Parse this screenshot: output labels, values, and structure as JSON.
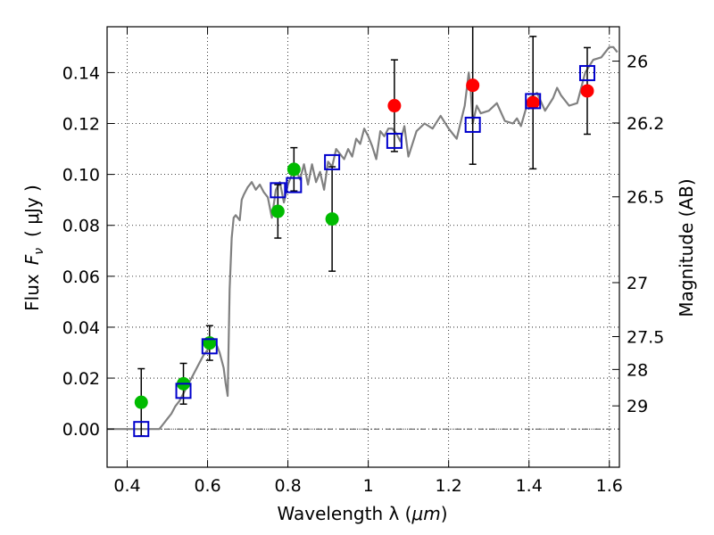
{
  "chart_data": {
    "type": "scatter",
    "xlabel": "Wavelength  λ (μm)",
    "ylabel": "Flux  F_ν  ( μJy )",
    "ylabel_parts": {
      "prefix": "Flux",
      "symbol": "F",
      "subscript": "ν",
      "unit": "( μJy )"
    },
    "xlabel_parts": {
      "prefix": "Wavelength  λ (",
      "unit": "μm",
      "suffix": ")"
    },
    "y2label": "Magnitude (AB)",
    "xlim": [
      0.35,
      1.625
    ],
    "ylim": [
      -0.015,
      0.158
    ],
    "grid": true,
    "x_ticks": [
      0.4,
      0.6,
      0.8,
      1.0,
      1.2,
      1.4,
      1.6
    ],
    "x_tick_labels": [
      "0.4",
      "0.6",
      "0.8",
      "1",
      "1.2",
      "1.4",
      "1.6"
    ],
    "y_ticks": [
      0.0,
      0.02,
      0.04,
      0.06,
      0.08,
      0.1,
      0.12,
      0.14
    ],
    "y_tick_labels": [
      "0.00",
      "0.02",
      "0.04",
      "0.06",
      "0.08",
      "0.10",
      "0.12",
      "0.14"
    ],
    "y2_ticks": [
      {
        "label": "26",
        "flux": 0.1445
      },
      {
        "label": "26.2",
        "flux": 0.1202
      },
      {
        "label": "26.5",
        "flux": 0.0912
      },
      {
        "label": "27",
        "flux": 0.0575
      },
      {
        "label": "27.5",
        "flux": 0.0363
      },
      {
        "label": "28",
        "flux": 0.0234
      },
      {
        "label": "29",
        "flux": 0.0091
      }
    ],
    "colors": {
      "green": "#00bb00",
      "red": "#ff0000",
      "squares": "#0000cc",
      "model": "#808080",
      "errorbar": "#000000"
    },
    "series": [
      {
        "kind": "model_spectrum",
        "x": [
          0.35,
          0.48,
          0.49,
          0.5,
          0.51,
          0.52,
          0.53,
          0.54,
          0.55,
          0.56,
          0.57,
          0.58,
          0.59,
          0.6,
          0.61,
          0.62,
          0.63,
          0.64,
          0.645,
          0.65,
          0.655,
          0.66,
          0.665,
          0.67,
          0.68,
          0.685,
          0.69,
          0.7,
          0.71,
          0.72,
          0.73,
          0.74,
          0.75,
          0.76,
          0.77,
          0.78,
          0.79,
          0.8,
          0.81,
          0.82,
          0.83,
          0.84,
          0.85,
          0.86,
          0.87,
          0.88,
          0.89,
          0.9,
          0.91,
          0.92,
          0.93,
          0.94,
          0.95,
          0.96,
          0.97,
          0.98,
          0.99,
          1.0,
          1.01,
          1.02,
          1.03,
          1.04,
          1.05,
          1.06,
          1.07,
          1.08,
          1.09,
          1.1,
          1.12,
          1.14,
          1.16,
          1.18,
          1.2,
          1.22,
          1.24,
          1.25,
          1.255,
          1.26,
          1.27,
          1.28,
          1.3,
          1.32,
          1.34,
          1.36,
          1.37,
          1.38,
          1.4,
          1.42,
          1.44,
          1.46,
          1.47,
          1.48,
          1.5,
          1.52,
          1.54,
          1.56,
          1.58,
          1.6,
          1.61,
          1.62
        ],
        "y": [
          0.0,
          0.0,
          0.002,
          0.004,
          0.006,
          0.009,
          0.011,
          0.014,
          0.017,
          0.02,
          0.023,
          0.026,
          0.029,
          0.031,
          0.034,
          0.034,
          0.03,
          0.024,
          0.018,
          0.013,
          0.055,
          0.075,
          0.083,
          0.084,
          0.082,
          0.09,
          0.092,
          0.095,
          0.097,
          0.094,
          0.096,
          0.093,
          0.091,
          0.083,
          0.094,
          0.097,
          0.089,
          0.096,
          0.1,
          0.102,
          0.098,
          0.104,
          0.096,
          0.104,
          0.097,
          0.101,
          0.094,
          0.105,
          0.103,
          0.11,
          0.108,
          0.106,
          0.11,
          0.107,
          0.114,
          0.112,
          0.118,
          0.115,
          0.111,
          0.106,
          0.117,
          0.115,
          0.118,
          0.118,
          0.116,
          0.113,
          0.119,
          0.107,
          0.117,
          0.12,
          0.118,
          0.123,
          0.118,
          0.114,
          0.127,
          0.14,
          0.133,
          0.12,
          0.127,
          0.124,
          0.125,
          0.128,
          0.121,
          0.12,
          0.122,
          0.119,
          0.13,
          0.132,
          0.125,
          0.13,
          0.134,
          0.131,
          0.127,
          0.128,
          0.14,
          0.145,
          0.146,
          0.15,
          0.15,
          0.148
        ]
      },
      {
        "kind": "green_points",
        "x": [
          0.435,
          0.54,
          0.605,
          0.775,
          0.815,
          0.91
        ],
        "y": [
          0.0105,
          0.0178,
          0.0338,
          0.0855,
          0.102,
          0.0825
        ],
        "yerr": [
          0.0132,
          0.008,
          0.0068,
          0.0105,
          0.0085,
          0.0205
        ]
      },
      {
        "kind": "red_points",
        "x": [
          1.065,
          1.26,
          1.41,
          1.545
        ],
        "y": [
          0.127,
          0.135,
          0.1282,
          0.1328
        ],
        "yerr": [
          0.018,
          0.031,
          0.026,
          0.017
        ]
      },
      {
        "kind": "model_squares",
        "x": [
          0.435,
          0.54,
          0.605,
          0.775,
          0.815,
          0.91,
          1.065,
          1.26,
          1.41,
          1.545
        ],
        "y": [
          0.0,
          0.015,
          0.0325,
          0.0938,
          0.0958,
          0.1048,
          0.1132,
          0.1195,
          0.1288,
          0.1398
        ]
      }
    ]
  }
}
